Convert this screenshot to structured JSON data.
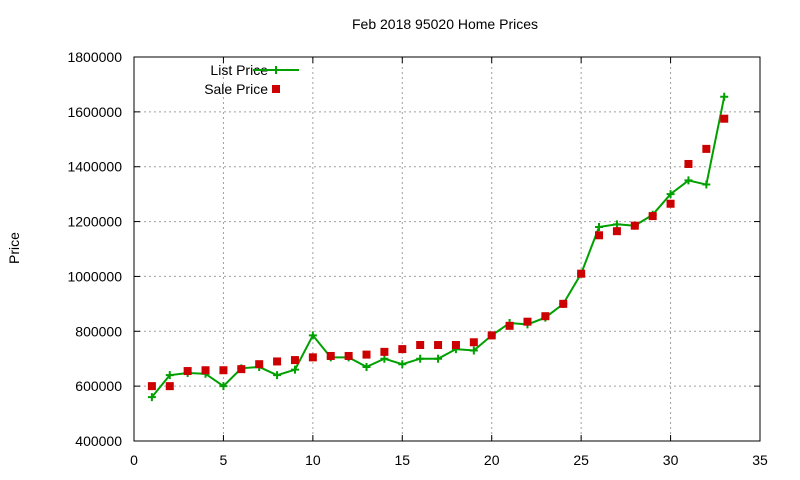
{
  "chart_data": {
    "type": "line",
    "title": "Feb 2018 95020 Home Prices",
    "xlabel": "",
    "ylabel": "Price",
    "xlim": [
      0,
      35
    ],
    "ylim": [
      400000,
      1800000
    ],
    "x_ticks": [
      0,
      5,
      10,
      15,
      20,
      25,
      30,
      35
    ],
    "y_ticks": [
      400000,
      600000,
      800000,
      1000000,
      1200000,
      1400000,
      1600000,
      1800000
    ],
    "grid": true,
    "legend_position": "top-left",
    "x": [
      1,
      2,
      3,
      4,
      5,
      6,
      7,
      8,
      9,
      10,
      11,
      12,
      13,
      14,
      15,
      16,
      17,
      18,
      19,
      20,
      21,
      22,
      23,
      24,
      25,
      26,
      27,
      28,
      29,
      30,
      31,
      32,
      33
    ],
    "series": [
      {
        "name": "List Price",
        "style": "linespoints",
        "color": "#00a000",
        "values": [
          560000,
          640000,
          648000,
          645000,
          600000,
          665000,
          670000,
          640000,
          660000,
          785000,
          705000,
          705000,
          670000,
          700000,
          680000,
          700000,
          700000,
          735000,
          730000,
          785000,
          830000,
          825000,
          850000,
          900000,
          1010000,
          1180000,
          1190000,
          1185000,
          1225000,
          1300000,
          1350000,
          1335000,
          1655000
        ]
      },
      {
        "name": "Sale Price",
        "style": "points",
        "color": "#cc0000",
        "values": [
          600000,
          600000,
          655000,
          658000,
          658000,
          662000,
          680000,
          690000,
          695000,
          705000,
          710000,
          710000,
          715000,
          725000,
          735000,
          750000,
          750000,
          750000,
          760000,
          785000,
          820000,
          835000,
          855000,
          900000,
          1010000,
          1150000,
          1165000,
          1185000,
          1220000,
          1265000,
          1410000,
          1465000,
          1575000
        ]
      }
    ]
  }
}
